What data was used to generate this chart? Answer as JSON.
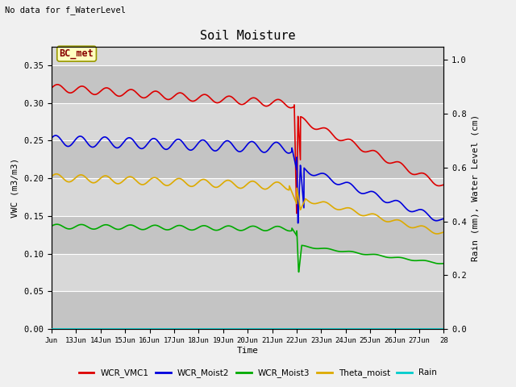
{
  "title": "Soil Moisture",
  "top_left_text": "No data for f_WaterLevel",
  "ylabel_left": "VWC (m3/m3)",
  "ylabel_right": "Rain (mm), Water Level (cm)",
  "xlabel": "Time",
  "ylim_left": [
    0.0,
    0.375
  ],
  "ylim_right": [
    0.0,
    1.05
  ],
  "xtick_labels": [
    "Jun",
    "13Jun",
    "14Jun",
    "15Jun",
    "16Jun",
    "17Jun",
    "18Jun",
    "19Jun",
    "20Jun",
    "21Jun",
    "22Jun",
    "23Jun",
    "24Jun",
    "25Jun",
    "26Jun",
    "27Jun",
    "28"
  ],
  "fig_bg_color": "#f0f0f0",
  "plot_bg_color": "#d8d8d8",
  "band_light": "#e8e8e8",
  "band_dark": "#d0d0d0",
  "annotation_box_text": "BC_met",
  "annotation_box_color": "#ffffc0",
  "annotation_box_border": "#999900",
  "series_colors": {
    "WCR_VMC1": "#dd0000",
    "WCR_Moist2": "#0000dd",
    "WCR_Moist3": "#00aa00",
    "Theta_moist": "#ddaa00",
    "Rain": "#00cccc"
  },
  "legend_labels": [
    "WCR_VMC1",
    "WCR_Moist2",
    "WCR_Moist3",
    "Theta_moist",
    "Rain"
  ],
  "legend_colors": [
    "#dd0000",
    "#0000dd",
    "#00aa00",
    "#ddaa00",
    "#00cccc"
  ]
}
